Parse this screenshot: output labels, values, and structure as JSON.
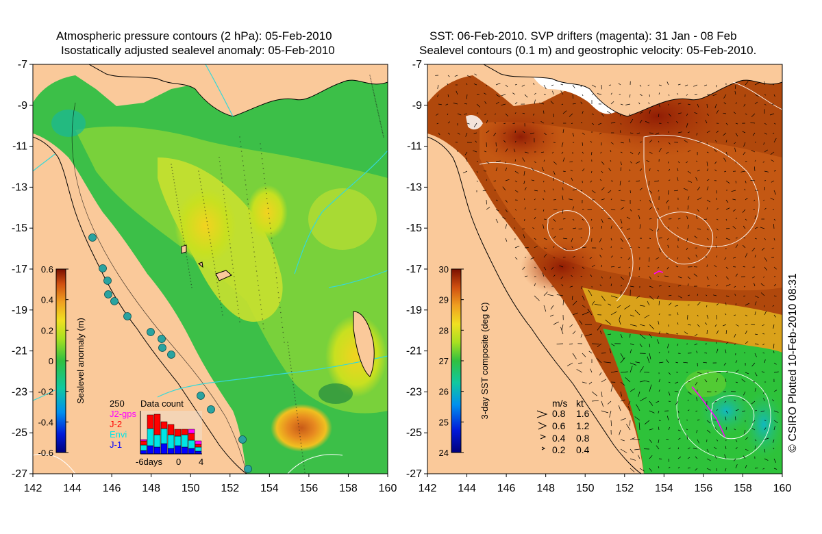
{
  "left_panel": {
    "title_line1": "Atmospheric pressure contours (2 hPa): 05-Feb-2010",
    "title_line2": "Isostatically adjusted sealevel anomaly: 05-Feb-2010",
    "y_ticks": [
      "-7",
      "-9",
      "-11",
      "-13",
      "-15",
      "-17",
      "-19",
      "-21",
      "-23",
      "-25",
      "-27"
    ],
    "x_ticks": [
      "142",
      "144",
      "146",
      "148",
      "150",
      "152",
      "154",
      "156",
      "158",
      "160"
    ],
    "colorbar": {
      "label": "Sealevel anomaly (m)",
      "ticks": [
        "0.6",
        "0.4",
        "0.2",
        "0",
        "-0.2",
        "-0.4",
        "-0.6"
      ],
      "range": [
        -0.6,
        0.6
      ]
    },
    "data_count": {
      "title": "Data count",
      "max_label": "250",
      "legend": [
        {
          "name": "J2-gps",
          "color": "#ff00ff"
        },
        {
          "name": "J-2",
          "color": "#ff0000"
        },
        {
          "name": "Envi",
          "color": "#00e5e5"
        },
        {
          "name": "J-1",
          "color": "#0000ff"
        }
      ],
      "x_labels": [
        "-6days",
        "0",
        "4"
      ]
    }
  },
  "right_panel": {
    "title_line1": "SST: 06-Feb-2010. SVP drifters (magenta): 31 Jan - 08 Feb",
    "title_line2": "Sealevel contours (0.1 m) and geostrophic velocity: 05-Feb-2010.",
    "y_ticks": [
      "-7",
      "-9",
      "-11",
      "-13",
      "-15",
      "-17",
      "-19",
      "-21",
      "-23",
      "-25",
      "-27"
    ],
    "x_ticks": [
      "142",
      "144",
      "146",
      "148",
      "150",
      "152",
      "154",
      "156",
      "158",
      "160"
    ],
    "colorbar": {
      "label": "3-day SST composite (deg C)",
      "ticks": [
        "30",
        "29",
        "28",
        "27",
        "26",
        "25",
        "24"
      ],
      "range": [
        24,
        30
      ]
    },
    "velocity_legend": {
      "header_ms": "m/s",
      "header_kt": "kt",
      "rows": [
        {
          "ms": "0.8",
          "kt": "1.6"
        },
        {
          "ms": "0.6",
          "kt": "1.2"
        },
        {
          "ms": "0.4",
          "kt": "0.8"
        },
        {
          "ms": "0.2",
          "kt": "0.4"
        }
      ]
    }
  },
  "credit": "© CSIRO Plotted 10-Feb-2010 08:31",
  "colors": {
    "land": "#fac99a",
    "ocean_green": "#3cc04a",
    "ssh_high": "#c0461a",
    "sst_warm": "#a62a06",
    "sst_cool": "#2ec23a",
    "contour_cyan": "#35d8d8",
    "drifter": "#ff00ff"
  }
}
